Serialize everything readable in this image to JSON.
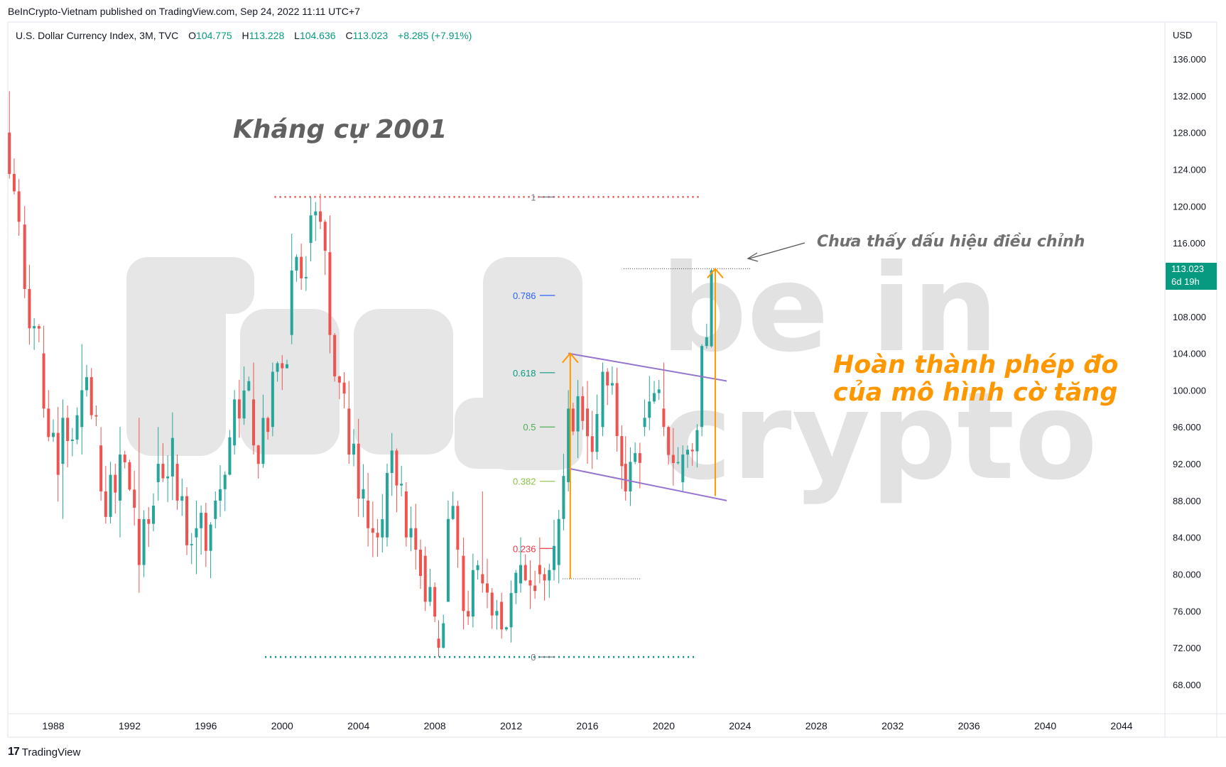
{
  "header": {
    "publisher": "BeInCrypto-Vietnam published on TradingView.com, Sep 24, 2022 11:11 UTC+7"
  },
  "legend": {
    "symbol": "U.S. Dollar Currency Index, 3M, TVC",
    "o_label": "O",
    "o_value": "104.775",
    "h_label": "H",
    "h_value": "113.228",
    "l_label": "L",
    "l_value": "104.636",
    "c_label": "C",
    "c_value": "113.023",
    "change": "+8.285 (+7.91%)"
  },
  "price_axis": {
    "unit": "USD",
    "ticks": [
      "136.000",
      "132.000",
      "128.000",
      "124.000",
      "120.000",
      "116.000",
      "108.000",
      "104.000",
      "100.000",
      "96.000",
      "92.000",
      "88.000",
      "84.000",
      "80.000",
      "76.000",
      "72.000",
      "68.000"
    ],
    "last_price": "113.023",
    "countdown": "6d 19h"
  },
  "time_axis": {
    "ticks": [
      "1988",
      "1992",
      "1996",
      "2000",
      "2004",
      "2008",
      "2012",
      "2016",
      "2020",
      "2024",
      "2028",
      "2032",
      "2036",
      "2040",
      "2044"
    ]
  },
  "annotations": {
    "resistance": "Kháng cự 2001",
    "no_correction": "Chưa thấy dấu hiệu điều chỉnh",
    "target_line1": "Hoàn thành phép đo",
    "target_line2": "của mô hình cờ tăng"
  },
  "watermark": {
    "line1": "be in",
    "line2": "crypto"
  },
  "footer": {
    "brand": "TradingView"
  },
  "colors": {
    "up": "#26a69a",
    "down": "#ef5350",
    "resistance_dots": "#e53935",
    "support_dots": "#00897b",
    "channel": "#9575cd",
    "arrow": "#ff9800",
    "target_text": "#ff9800",
    "annotation_text": "#707070",
    "last_price_bg": "#089981"
  },
  "chart_data": {
    "type": "candlestick",
    "title": "U.S. Dollar Currency Index, 3M, TVC",
    "ylabel": "USD",
    "ylim": [
      65,
      138
    ],
    "xlim": [
      1985.5,
      2046.5
    ],
    "candles_sampled": [
      {
        "t": 1985.7,
        "o": 128,
        "h": 132.5,
        "l": 123,
        "c": 123.5
      },
      {
        "t": 1986.5,
        "o": 118,
        "h": 120,
        "l": 110,
        "c": 111
      },
      {
        "t": 1987.5,
        "o": 104,
        "h": 107,
        "l": 97,
        "c": 98
      },
      {
        "t": 1988.5,
        "o": 92,
        "h": 99,
        "l": 86,
        "c": 97
      },
      {
        "t": 1989.5,
        "o": 96,
        "h": 105,
        "l": 93,
        "c": 100
      },
      {
        "t": 1990.5,
        "o": 94,
        "h": 96,
        "l": 88,
        "c": 89
      },
      {
        "t": 1991.5,
        "o": 88,
        "h": 96,
        "l": 84,
        "c": 93
      },
      {
        "t": 1992.5,
        "o": 86,
        "h": 97,
        "l": 78,
        "c": 81
      },
      {
        "t": 1993.5,
        "o": 90,
        "h": 96,
        "l": 88,
        "c": 92
      },
      {
        "t": 1994.5,
        "o": 92,
        "h": 93,
        "l": 87,
        "c": 88
      },
      {
        "t": 1995.5,
        "o": 84,
        "h": 88,
        "l": 80,
        "c": 85
      },
      {
        "t": 1996.5,
        "o": 86,
        "h": 89,
        "l": 85,
        "c": 88
      },
      {
        "t": 1997.5,
        "o": 94,
        "h": 100,
        "l": 93,
        "c": 99
      },
      {
        "t": 1998.5,
        "o": 99,
        "h": 103,
        "l": 93,
        "c": 94
      },
      {
        "t": 1999.5,
        "o": 96,
        "h": 103,
        "l": 95,
        "c": 102
      },
      {
        "t": 2000.5,
        "o": 106,
        "h": 117,
        "l": 105,
        "c": 113
      },
      {
        "t": 2001.5,
        "o": 116,
        "h": 121,
        "l": 114,
        "c": 119
      },
      {
        "t": 2002.5,
        "o": 115,
        "h": 119,
        "l": 104,
        "c": 106
      },
      {
        "t": 2003.5,
        "o": 98,
        "h": 101,
        "l": 92,
        "c": 93
      },
      {
        "t": 2004.5,
        "o": 88,
        "h": 91,
        "l": 83,
        "c": 85
      },
      {
        "t": 2005.5,
        "o": 84,
        "h": 92,
        "l": 83,
        "c": 91
      },
      {
        "t": 2006.5,
        "o": 89,
        "h": 90,
        "l": 83,
        "c": 84
      },
      {
        "t": 2007.5,
        "o": 82,
        "h": 83,
        "l": 76,
        "c": 77
      },
      {
        "t": 2008.2,
        "o": 73,
        "h": 75,
        "l": 71,
        "c": 72
      },
      {
        "t": 2008.7,
        "o": 77,
        "h": 88,
        "l": 77,
        "c": 86
      },
      {
        "t": 2009.5,
        "o": 82,
        "h": 84,
        "l": 74,
        "c": 76
      },
      {
        "t": 2010.5,
        "o": 80,
        "h": 89,
        "l": 78,
        "c": 79
      },
      {
        "t": 2011.5,
        "o": 77,
        "h": 78,
        "l": 73,
        "c": 74
      },
      {
        "t": 2012.5,
        "o": 79,
        "h": 84,
        "l": 78,
        "c": 81
      },
      {
        "t": 2013.5,
        "o": 81,
        "h": 84,
        "l": 79,
        "c": 80
      },
      {
        "t": 2014.5,
        "o": 81,
        "h": 87,
        "l": 79,
        "c": 86
      },
      {
        "t": 2015.0,
        "o": 90,
        "h": 100,
        "l": 89,
        "c": 98
      },
      {
        "t": 2016.0,
        "o": 98,
        "h": 101,
        "l": 92,
        "c": 95
      },
      {
        "t": 2016.8,
        "o": 96,
        "h": 103,
        "l": 95,
        "c": 102
      },
      {
        "t": 2018.0,
        "o": 92,
        "h": 95,
        "l": 88,
        "c": 89
      },
      {
        "t": 2019.0,
        "o": 96,
        "h": 99,
        "l": 95,
        "c": 97
      },
      {
        "t": 2020.0,
        "o": 98,
        "h": 103,
        "l": 95,
        "c": 96
      },
      {
        "t": 2021.0,
        "o": 90,
        "h": 94,
        "l": 89,
        "c": 93
      },
      {
        "t": 2022.0,
        "o": 96,
        "h": 105,
        "l": 95,
        "c": 104.8
      },
      {
        "t": 2022.5,
        "o": 104.775,
        "h": 113.228,
        "l": 104.636,
        "c": 113.023
      }
    ],
    "fibonacci": {
      "levels": [
        "1",
        "0.786",
        "0.618",
        "0.5",
        "0.382",
        "0.236",
        "0"
      ],
      "level_colors": [
        "#787b86",
        "#2962ff",
        "#089981",
        "#4caf50",
        "#8bc34a",
        "#f23645",
        "#787b86"
      ],
      "low": 71,
      "high": 121
    },
    "channel": {
      "upper": [
        [
          2015.0,
          104
        ],
        [
          2023.3,
          101
        ]
      ],
      "lower": [
        [
          2015.0,
          91.5
        ],
        [
          2023.3,
          88
        ]
      ]
    },
    "resistance_level": 121,
    "support_level": 71,
    "current_high_level": 113.2,
    "flag_base_level": 79.5,
    "last_price": 113.023
  }
}
